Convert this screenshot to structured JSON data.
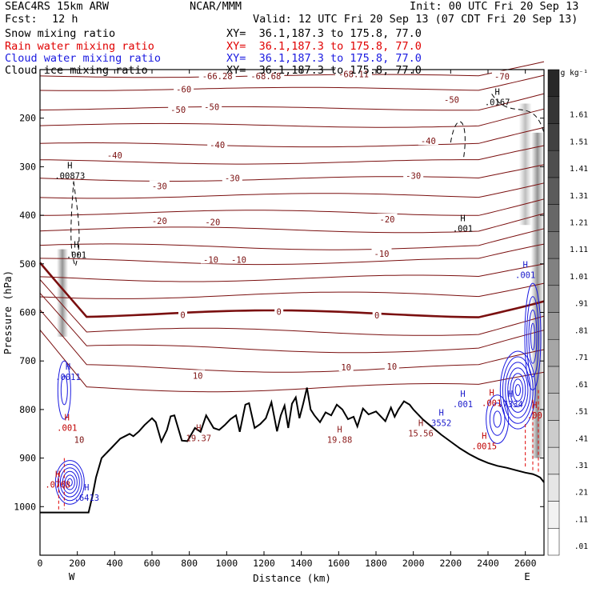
{
  "header": {
    "model": "SEAC4RS 15km ARW",
    "org": "NCAR/MMM",
    "init": "Init: 00 UTC Fri 20 Sep 13",
    "fcst_label": "Fcst:",
    "fcst_value": "12 h",
    "valid": "Valid: 12 UTC Fri 20 Sep 13 (07 CDT Fri 20 Sep 13)"
  },
  "chart_data": {
    "type": "cross-section contour",
    "fields": [
      {
        "name": "Snow mixing ratio",
        "color": "#000000",
        "xy": "XY=  36.1,187.3 to 175.8, 77.0"
      },
      {
        "name": "Rain water mixing ratio",
        "color": "#e00000",
        "xy": "XY=  36.1,187.3 to 175.8, 77.0"
      },
      {
        "name": "Cloud water mixing ratio",
        "color": "#1a1ae0",
        "xy": "XY=  36.1,187.3 to 175.8, 77.0"
      },
      {
        "name": "Cloud ice mixing ratio",
        "color": "#000000",
        "xy": "XY=  36.1,187.3 to 175.8, 77.0"
      }
    ],
    "xlabel": "Distance (km)",
    "ylabel": "Pressure (hPa)",
    "xlim": [
      0,
      2700
    ],
    "ylim": [
      1100,
      100
    ],
    "x_ticks": [
      0,
      200,
      400,
      600,
      800,
      1000,
      1200,
      1400,
      1600,
      1800,
      2000,
      2200,
      2400,
      2600
    ],
    "y_ticks": [
      200,
      300,
      400,
      500,
      600,
      700,
      800,
      900,
      1000
    ],
    "endpoint_labels": {
      "left": "W",
      "right": "E"
    },
    "colorbar": {
      "unit": "g kg⁻¹",
      "levels": [
        ".01",
        ".11",
        ".21",
        ".31",
        ".41",
        ".51",
        ".61",
        ".71",
        ".81",
        ".91",
        "1.01",
        "1.11",
        "1.21",
        "1.31",
        "1.41",
        "1.51",
        "1.61"
      ]
    },
    "temperature_labels": [
      {
        "text": "-66.28",
        "x": 950,
        "p": 113
      },
      {
        "text": "-68.68",
        "x": 1210,
        "p": 113
      },
      {
        "text": "-68.11",
        "x": 1680,
        "p": 109
      },
      {
        "text": "-70",
        "x": 2475,
        "p": 114
      },
      {
        "text": "-60",
        "x": 770,
        "p": 140
      },
      {
        "text": "-50",
        "x": 740,
        "p": 182
      },
      {
        "text": "-50",
        "x": 920,
        "p": 177
      },
      {
        "text": "-50",
        "x": 2205,
        "p": 162
      },
      {
        "text": "-40",
        "x": 400,
        "p": 276
      },
      {
        "text": "-40",
        "x": 950,
        "p": 255
      },
      {
        "text": "-40",
        "x": 2080,
        "p": 247
      },
      {
        "text": "-30",
        "x": 640,
        "p": 340
      },
      {
        "text": "-30",
        "x": 1030,
        "p": 323
      },
      {
        "text": "-30",
        "x": 2000,
        "p": 318
      },
      {
        "text": "-20",
        "x": 640,
        "p": 411
      },
      {
        "text": "-20",
        "x": 925,
        "p": 414
      },
      {
        "text": "-20",
        "x": 1860,
        "p": 408
      },
      {
        "text": "-10",
        "x": 915,
        "p": 491
      },
      {
        "text": "-10",
        "x": 1065,
        "p": 491
      },
      {
        "text": "-10",
        "x": 1830,
        "p": 479
      },
      {
        "text": "0",
        "x": 765,
        "p": 605
      },
      {
        "text": "0",
        "x": 1280,
        "p": 598
      },
      {
        "text": "0",
        "x": 1805,
        "p": 606
      },
      {
        "text": "10",
        "x": 845,
        "p": 730
      },
      {
        "text": "10",
        "x": 1640,
        "p": 713
      },
      {
        "text": "10",
        "x": 1885,
        "p": 711
      },
      {
        "text": "10",
        "x": 210,
        "p": 862
      }
    ],
    "h_labels": [
      {
        "text": ".00873",
        "x": 160,
        "p": 320,
        "color": "#000000"
      },
      {
        "text": ".001",
        "x": 195,
        "p": 483,
        "color": "#000000"
      },
      {
        "text": ".001",
        "x": 2265,
        "p": 429,
        "color": "#000000"
      },
      {
        "text": ".0167",
        "x": 2450,
        "p": 168,
        "color": "#000000"
      },
      {
        "text": "19.37",
        "x": 850,
        "p": 860,
        "color": "#8b1a1a"
      },
      {
        "text": "19.88",
        "x": 1605,
        "p": 864,
        "color": "#8b1a1a"
      },
      {
        "text": "15.56",
        "x": 2040,
        "p": 850,
        "color": "#8b1a1a"
      },
      {
        "text": ".0768",
        "x": 95,
        "p": 956,
        "color": "#c00000"
      },
      {
        "text": ".001",
        "x": 145,
        "p": 839,
        "color": "#c00000"
      },
      {
        "text": ".001",
        "x": 2420,
        "p": 788,
        "color": "#c00000"
      },
      {
        "text": ".0015",
        "x": 2380,
        "p": 877,
        "color": "#c00000"
      },
      {
        "text": ".00",
        "x": 2650,
        "p": 813,
        "color": "#c00000"
      },
      {
        "text": ".7334",
        "x": 2520,
        "p": 790,
        "color": "#1a1acc"
      },
      {
        "text": "3552",
        "x": 2150,
        "p": 829,
        "color": "#1a1acc"
      },
      {
        "text": ".001",
        "x": 2265,
        "p": 790,
        "color": "#1a1acc"
      },
      {
        "text": ".0011",
        "x": 150,
        "p": 734,
        "color": "#1a1acc"
      },
      {
        "text": ".6413",
        "x": 250,
        "p": 983,
        "color": "#1a1acc"
      },
      {
        "text": ".001",
        "x": 2600,
        "p": 524,
        "color": "#1a1acc"
      }
    ],
    "terrain": {
      "x": [
        0,
        100,
        200,
        250,
        260,
        280,
        300,
        330,
        380,
        430,
        480,
        500,
        530,
        560,
        600,
        620,
        650,
        680,
        700,
        720,
        760,
        790,
        830,
        860,
        890,
        930,
        960,
        990,
        1020,
        1050,
        1070,
        1100,
        1120,
        1150,
        1180,
        1210,
        1240,
        1270,
        1290,
        1310,
        1330,
        1350,
        1370,
        1390,
        1410,
        1430,
        1450,
        1470,
        1500,
        1530,
        1560,
        1590,
        1620,
        1650,
        1680,
        1700,
        1730,
        1760,
        1800,
        1850,
        1880,
        1900,
        1920,
        1950,
        1980,
        2000,
        2050,
        2100,
        2150,
        2200,
        2250,
        2300,
        2350,
        2400,
        2450,
        2500,
        2550,
        2600,
        2640,
        2660,
        2680,
        2700
      ],
      "p": [
        1012,
        1012,
        1012,
        1012,
        1012,
        980,
        940,
        900,
        880,
        860,
        850,
        855,
        845,
        832,
        818,
        826,
        866,
        842,
        814,
        812,
        864,
        865,
        838,
        846,
        812,
        838,
        842,
        832,
        820,
        812,
        846,
        790,
        787,
        838,
        830,
        818,
        785,
        845,
        812,
        792,
        838,
        788,
        775,
        818,
        788,
        755,
        800,
        812,
        826,
        806,
        812,
        790,
        800,
        820,
        815,
        835,
        798,
        810,
        804,
        824,
        796,
        815,
        800,
        783,
        790,
        800,
        820,
        836,
        852,
        866,
        880,
        892,
        902,
        910,
        916,
        920,
        925,
        930,
        933,
        936,
        940,
        950
      ]
    }
  }
}
